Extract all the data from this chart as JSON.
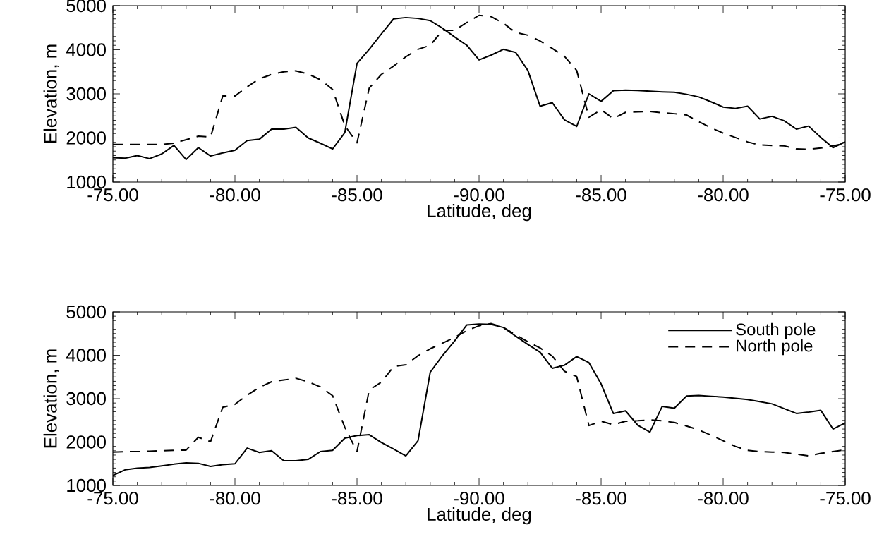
{
  "chart_data": [
    {
      "type": "line",
      "xlabel": "Latitude, deg",
      "ylabel": "Elevation, m",
      "ylim": [
        1000,
        5000
      ],
      "categories": [
        "-75.00",
        null,
        null,
        null,
        null,
        null,
        null,
        null,
        null,
        null,
        "-80.00",
        null,
        null,
        null,
        null,
        null,
        null,
        null,
        null,
        null,
        "-85.00",
        null,
        null,
        null,
        null,
        null,
        null,
        null,
        null,
        null,
        "-90.00",
        null,
        null,
        null,
        null,
        null,
        null,
        null,
        null,
        null,
        "-85.00",
        null,
        null,
        null,
        null,
        null,
        null,
        null,
        null,
        null,
        "-80.00",
        null,
        null,
        null,
        null,
        null,
        null,
        null,
        null,
        null,
        "-75.00"
      ],
      "yticks": [
        1000,
        2000,
        3000,
        4000,
        5000
      ],
      "grid": false,
      "legend": false,
      "marker": "none",
      "series": [
        {
          "color": "#000000",
          "line_style": "solid",
          "values": [
            1550,
            1540,
            1600,
            1530,
            1635,
            1830,
            1510,
            1780,
            1590,
            1660,
            1720,
            1940,
            1970,
            2200,
            2200,
            2240,
            2000,
            1880,
            1750,
            2120,
            3690,
            4010,
            4360,
            4700,
            4730,
            4710,
            4660,
            4490,
            4290,
            4100,
            3770,
            3880,
            4010,
            3940,
            3530,
            2720,
            2800,
            2410,
            2260,
            3000,
            2830,
            3070,
            3085,
            3075,
            3060,
            3045,
            3035,
            2990,
            2930,
            2820,
            2700,
            2670,
            2720,
            2430,
            2490,
            2390,
            2200,
            2270,
            2010,
            1780,
            1910
          ]
        },
        {
          "color": "#000000",
          "line_style": "dashed",
          "values": [
            1850,
            1850,
            1850,
            1850,
            1850,
            1880,
            1960,
            2040,
            2020,
            2950,
            2950,
            3160,
            3340,
            3440,
            3500,
            3520,
            3450,
            3320,
            3100,
            2280,
            1890,
            3130,
            3440,
            3630,
            3840,
            4010,
            4100,
            4440,
            4440,
            4620,
            4780,
            4750,
            4600,
            4390,
            4330,
            4200,
            4030,
            3850,
            3530,
            2470,
            2640,
            2440,
            2580,
            2590,
            2600,
            2570,
            2550,
            2520,
            2370,
            2230,
            2110,
            2010,
            1910,
            1840,
            1830,
            1820,
            1750,
            1740,
            1770,
            1820,
            1880
          ]
        }
      ]
    },
    {
      "type": "line",
      "xlabel": "Latitude, deg",
      "ylabel": "Elevation, m",
      "ylim": [
        1000,
        5000
      ],
      "categories": [
        "-75.00",
        null,
        null,
        null,
        null,
        null,
        null,
        null,
        null,
        null,
        "-80.00",
        null,
        null,
        null,
        null,
        null,
        null,
        null,
        null,
        null,
        "-85.00",
        null,
        null,
        null,
        null,
        null,
        null,
        null,
        null,
        null,
        "-90.00",
        null,
        null,
        null,
        null,
        null,
        null,
        null,
        null,
        null,
        "-85.00",
        null,
        null,
        null,
        null,
        null,
        null,
        null,
        null,
        null,
        "-80.00",
        null,
        null,
        null,
        null,
        null,
        null,
        null,
        null,
        null,
        "-75.00"
      ],
      "yticks": [
        1000,
        2000,
        3000,
        4000,
        5000
      ],
      "grid": false,
      "legend": "top right",
      "marker": "none",
      "series": [
        {
          "name": "South pole",
          "color": "#000000",
          "line_style": "solid",
          "values": [
            1230,
            1360,
            1400,
            1415,
            1450,
            1490,
            1520,
            1510,
            1440,
            1480,
            1500,
            1860,
            1760,
            1800,
            1570,
            1570,
            1600,
            1780,
            1810,
            2090,
            2150,
            2170,
            1990,
            1840,
            1680,
            2030,
            3610,
            3990,
            4330,
            4700,
            4720,
            4710,
            4640,
            4440,
            4250,
            4070,
            3700,
            3770,
            3970,
            3830,
            3340,
            2660,
            2720,
            2390,
            2230,
            2820,
            2780,
            3060,
            3075,
            3055,
            3035,
            3010,
            2980,
            2930,
            2880,
            2770,
            2660,
            2690,
            2730,
            2300,
            2440
          ]
        },
        {
          "name": "North pole",
          "color": "#000000",
          "line_style": "dashed",
          "values": [
            1770,
            1780,
            1780,
            1790,
            1800,
            1810,
            1815,
            2110,
            2010,
            2800,
            2870,
            3080,
            3260,
            3390,
            3430,
            3470,
            3390,
            3270,
            3070,
            2340,
            1780,
            3200,
            3380,
            3740,
            3780,
            3990,
            4150,
            4280,
            4410,
            4570,
            4680,
            4730,
            4640,
            4470,
            4310,
            4170,
            3980,
            3630,
            3510,
            2380,
            2480,
            2400,
            2480,
            2490,
            2510,
            2490,
            2450,
            2370,
            2280,
            2160,
            2030,
            1900,
            1810,
            1780,
            1770,
            1760,
            1720,
            1680,
            1740,
            1780,
            1820
          ]
        }
      ]
    }
  ]
}
